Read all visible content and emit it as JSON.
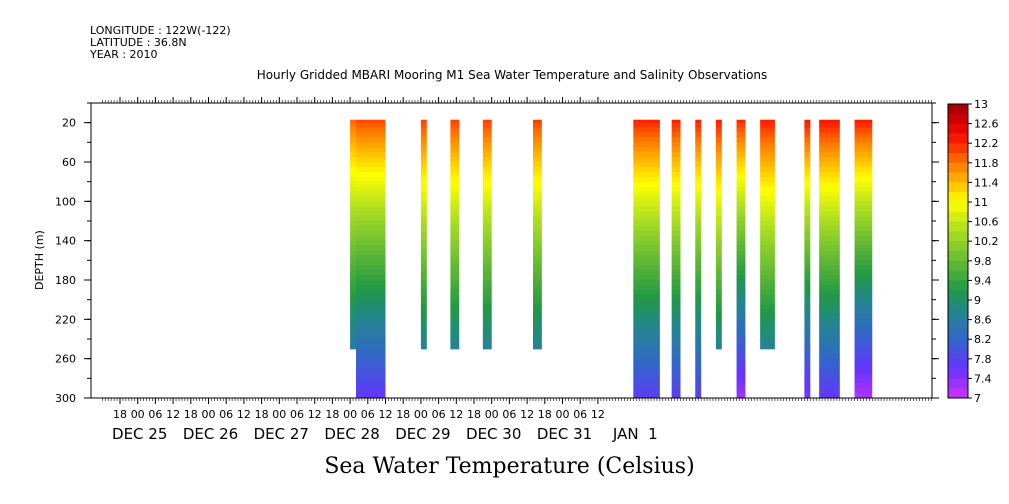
{
  "header": {
    "longitude": "LONGITUDE : 122W(-122)",
    "latitude": "LATITUDE : 36.8N",
    "year": "YEAR : 2010"
  },
  "chart_data": {
    "type": "heatmap",
    "title": "Hourly Gridded MBARI Mooring M1 Sea Water Temperature and Salinity Observations",
    "xlabel": "Sea Water Temperature (Celsius)",
    "ylabel": "DEPTH (m)",
    "x_hour_ticks": [
      "18",
      "00",
      "06",
      "12",
      "18",
      "00",
      "06",
      "12",
      "18",
      "00",
      "06",
      "12",
      "18",
      "00",
      "06",
      "12",
      "18",
      "00",
      "06",
      "12",
      "18",
      "00",
      "06",
      "12",
      "18",
      "00",
      "06",
      "12"
    ],
    "x_day_labels": [
      "DEC 25",
      "DEC 26",
      "DEC 27",
      "DEC 28",
      "DEC 29",
      "DEC 30",
      "DEC 31",
      "JAN  1"
    ],
    "y_ticks": [
      "20",
      "60",
      "100",
      "140",
      "180",
      "220",
      "260",
      "300"
    ],
    "ylim": [
      0,
      300
    ],
    "colorbar": {
      "labels": [
        "13",
        "12.6",
        "12.2",
        "11.8",
        "11.4",
        "11",
        "10.6",
        "10.2",
        "9.8",
        "9.4",
        "9",
        "8.6",
        "8.2",
        "7.8",
        "7.4",
        "7"
      ],
      "range": [
        7,
        13
      ],
      "step": 0.2
    },
    "time_origin": "2010-12-24 12:00",
    "data_columns": [
      {
        "start_hour": 84,
        "end_hour": 86,
        "max_depth": 250,
        "surface_temp": 12.2,
        "bottom_temp": 7.9
      },
      {
        "start_hour": 86,
        "end_hour": 96,
        "max_depth": 300,
        "surface_temp": 12.4,
        "bottom_temp": 7.6
      },
      {
        "start_hour": 108,
        "end_hour": 110,
        "max_depth": 250,
        "surface_temp": 12.4,
        "bottom_temp": 8.0
      },
      {
        "start_hour": 118,
        "end_hour": 121,
        "max_depth": 250,
        "surface_temp": 12.4,
        "bottom_temp": 8.0
      },
      {
        "start_hour": 129,
        "end_hour": 132,
        "max_depth": 250,
        "surface_temp": 12.4,
        "bottom_temp": 8.0
      },
      {
        "start_hour": 146,
        "end_hour": 149,
        "max_depth": 250,
        "surface_temp": 12.4,
        "bottom_temp": 8.0
      },
      {
        "start_hour": 180,
        "end_hour": 189,
        "max_depth": 300,
        "surface_temp": 12.6,
        "bottom_temp": 7.7
      },
      {
        "start_hour": 193,
        "end_hour": 196,
        "max_depth": 300,
        "surface_temp": 12.6,
        "bottom_temp": 7.7
      },
      {
        "start_hour": 201,
        "end_hour": 203,
        "max_depth": 300,
        "surface_temp": 12.6,
        "bottom_temp": 7.7
      },
      {
        "start_hour": 208,
        "end_hour": 210,
        "max_depth": 250,
        "surface_temp": 12.6,
        "bottom_temp": 8.0
      },
      {
        "start_hour": 215,
        "end_hour": 218,
        "max_depth": 300,
        "surface_temp": 12.6,
        "bottom_temp": 7.2
      },
      {
        "start_hour": 223,
        "end_hour": 228,
        "max_depth": 250,
        "surface_temp": 12.6,
        "bottom_temp": 8.0
      },
      {
        "start_hour": 238,
        "end_hour": 240,
        "max_depth": 300,
        "surface_temp": 12.7,
        "bottom_temp": 7.4
      },
      {
        "start_hour": 243,
        "end_hour": 250,
        "max_depth": 300,
        "surface_temp": 12.7,
        "bottom_temp": 7.6
      },
      {
        "start_hour": 255,
        "end_hour": 261,
        "max_depth": 300,
        "surface_temp": 12.7,
        "bottom_temp": 7.1
      }
    ]
  }
}
